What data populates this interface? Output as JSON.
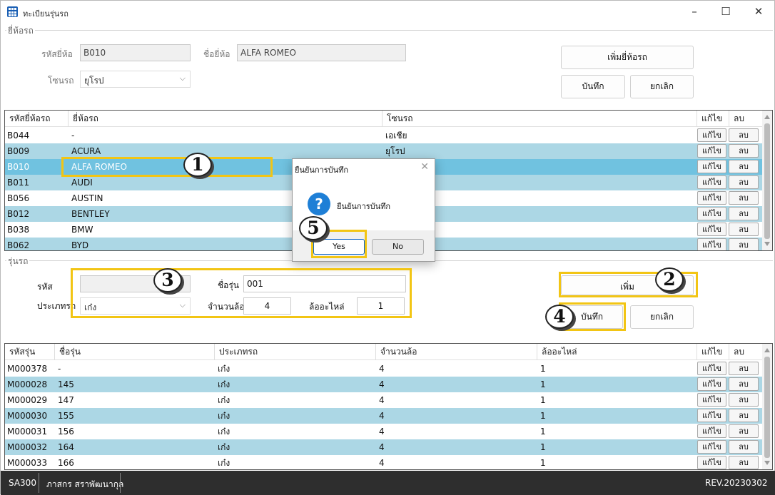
{
  "window": {
    "title": "ทะเบียนรุ่นรถ"
  },
  "brand_section": {
    "group_label": "ยี่ห้อรถ",
    "code_label": "รหัสยี่ห้อ",
    "code_value": "B010",
    "name_label": "ชื่อยี่ห้อ",
    "name_value": "ALFA ROMEO",
    "zone_label": "โซนรถ",
    "zone_value": "ยุโรป",
    "add_brand_button": "เพิ่มยี่ห้อรถ",
    "save_button": "บันทึก",
    "cancel_button": "ยกเลิก"
  },
  "brand_grid": {
    "headers": [
      "รหัสยี่ห้อรถ",
      "ยี่ห้อรถ",
      "โซนรถ",
      "แก้ไข",
      "ลบ"
    ],
    "edit_label": "แก้ไข",
    "delete_label": "ลบ",
    "rows": [
      {
        "code": "B044",
        "name": "-",
        "zone": "เอเชีย"
      },
      {
        "code": "B009",
        "name": "ACURA",
        "zone": "ยุโรป"
      },
      {
        "code": "B010",
        "name": "ALFA ROMEO",
        "zone": ""
      },
      {
        "code": "B011",
        "name": "AUDI",
        "zone": ""
      },
      {
        "code": "B056",
        "name": "AUSTIN",
        "zone": ""
      },
      {
        "code": "B012",
        "name": "BENTLEY",
        "zone": ""
      },
      {
        "code": "B038",
        "name": "BMW",
        "zone": ""
      },
      {
        "code": "B062",
        "name": "BYD",
        "zone": ""
      }
    ]
  },
  "model_section": {
    "group_label": "รุ่นรถ",
    "code_label": "รหัส",
    "code_value": "",
    "name_label": "ชื่อรุ่น",
    "name_value": "001",
    "type_label": "ประเภทรถ",
    "type_value": "เก๋ง",
    "wheels_label": "จำนวนล้อ",
    "wheels_value": "4",
    "spare_label": "ล้ออะไหล่",
    "spare_value": "1",
    "add_button": "เพิ่ม",
    "save_button": "บันทึก",
    "cancel_button": "ยกเลิก"
  },
  "model_grid": {
    "headers": [
      "รหัสรุ่น",
      "ชื่อรุ่น",
      "ประเภทรถ",
      "จำนวนล้อ",
      "ล้ออะไหล่",
      "แก้ไข",
      "ลบ"
    ],
    "edit_label": "แก้ไข",
    "delete_label": "ลบ",
    "rows": [
      {
        "code": "M000378",
        "name": "-",
        "type": "เก๋ง",
        "wheels": "4",
        "spare": "1"
      },
      {
        "code": "M000028",
        "name": "145",
        "type": "เก๋ง",
        "wheels": "4",
        "spare": "1"
      },
      {
        "code": "M000029",
        "name": "147",
        "type": "เก๋ง",
        "wheels": "4",
        "spare": "1"
      },
      {
        "code": "M000030",
        "name": "155",
        "type": "เก๋ง",
        "wheels": "4",
        "spare": "1"
      },
      {
        "code": "M000031",
        "name": "156",
        "type": "เก๋ง",
        "wheels": "4",
        "spare": "1"
      },
      {
        "code": "M000032",
        "name": "164",
        "type": "เก๋ง",
        "wheels": "4",
        "spare": "1"
      },
      {
        "code": "M000033",
        "name": "166",
        "type": "เก๋ง",
        "wheels": "4",
        "spare": "1"
      }
    ]
  },
  "dialog": {
    "title": "ยืนยันการบันทึก",
    "message": "ยืนยันการบันทึก",
    "yes_button": "Yes",
    "no_button": "No"
  },
  "annotations": {
    "n1": "1",
    "n2": "2",
    "n3": "3",
    "n4": "4",
    "n5": "5"
  },
  "status_bar": {
    "code": "SA300",
    "user": "ภาสกร สราพัฒนากุล",
    "version": "REV.20230302"
  },
  "colors": {
    "row_alt": "#acd7e5",
    "row_selected": "#70c2e0",
    "highlight": "#f2c514",
    "status_bg": "#2e2e2e"
  }
}
